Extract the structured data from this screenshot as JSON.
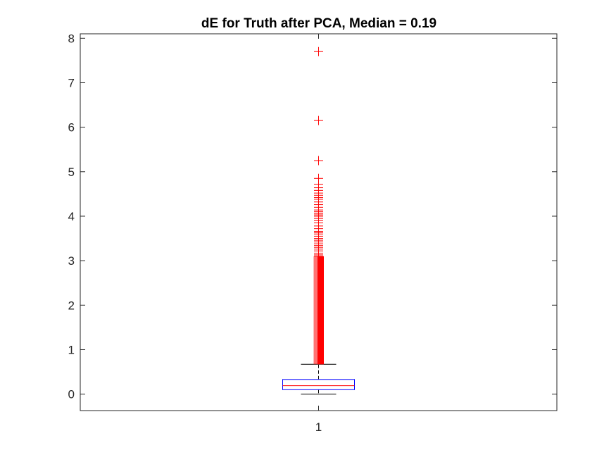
{
  "chart_data": {
    "type": "box",
    "title": "dE for Truth after PCA, Median = 0.19",
    "xlabel": "",
    "ylabel": "",
    "categories": [
      "1"
    ],
    "ylim": [
      -0.37,
      8.1
    ],
    "yticks": [
      0,
      1,
      2,
      3,
      4,
      5,
      6,
      7,
      8
    ],
    "y_tick_labels": [
      "0",
      "1",
      "2",
      "3",
      "4",
      "5",
      "6",
      "7",
      "8"
    ],
    "grid": false,
    "legend": "none",
    "box": {
      "whisker_low": 0.0,
      "q1": 0.1,
      "median": 0.19,
      "q3": 0.33,
      "whisker_high": 0.67
    },
    "outlier_dense_range": [
      0.67,
      3.1
    ],
    "outliers": [
      3.1,
      3.13,
      3.17,
      3.22,
      3.26,
      3.3,
      3.34,
      3.38,
      3.42,
      3.46,
      3.5,
      3.55,
      3.6,
      3.63,
      3.66,
      3.72,
      3.78,
      3.85,
      3.9,
      3.95,
      4.0,
      4.03,
      4.06,
      4.1,
      4.14,
      4.2,
      4.26,
      4.32,
      4.38,
      4.42,
      4.47,
      4.52,
      4.58,
      4.64,
      4.72,
      4.85,
      5.25,
      6.15,
      7.7
    ],
    "colors": {
      "box": "#0000ff",
      "median": "#ff0000",
      "whisker": "#000000",
      "outlier": "#ff0000",
      "axes": "#262626"
    }
  }
}
